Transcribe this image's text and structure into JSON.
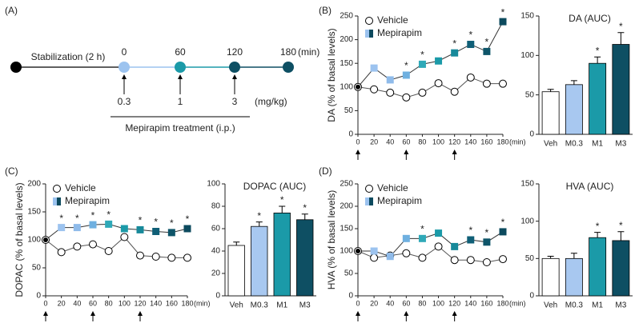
{
  "panel_labels": [
    "(A)",
    "(B)",
    "(C)",
    "(D)"
  ],
  "timeline": {
    "stabilization": "Stabilization (2 h)",
    "times": [
      "0",
      "60",
      "120",
      "180"
    ],
    "time_unit": "(min)",
    "doses": [
      "0.3",
      "1",
      "3"
    ],
    "dose_unit": "(mg/kg)",
    "treatment": "Mepirapim treatment (i.p.)"
  },
  "chart_data": [
    {
      "type": "line",
      "ylabel": "DA (% of basal levels)",
      "xlabel": "(min)",
      "x": [
        0,
        20,
        40,
        60,
        80,
        100,
        120,
        140,
        160,
        180
      ],
      "xlim": [
        0,
        180
      ],
      "xticks": [
        0,
        20,
        40,
        60,
        80,
        100,
        120,
        140,
        160,
        180
      ],
      "ylim": [
        0,
        250
      ],
      "yticks": [
        0,
        50,
        100,
        150,
        200,
        250
      ],
      "injections": [
        0,
        60,
        120
      ],
      "series": [
        {
          "name": "Vehicle",
          "color": "#555555",
          "values": [
            100,
            95,
            88,
            78,
            88,
            108,
            90,
            120,
            107,
            107
          ]
        },
        {
          "name": "Mepirapim",
          "color": "#333333",
          "colors": [
            "#000000",
            "#9cc3ef",
            "#8fbbea",
            "#6fb0e0",
            "#2fa9b8",
            "#1b9aa8",
            "#17899a",
            "#105f77",
            "#0e5569",
            "#0c4a5e"
          ],
          "values": [
            100,
            140,
            115,
            125,
            148,
            155,
            172,
            190,
            175,
            238
          ],
          "sig": [
            null,
            null,
            null,
            "*",
            "*",
            null,
            "*",
            "*",
            "*",
            "*"
          ]
        }
      ]
    },
    {
      "type": "bar",
      "title": "DA (AUC)",
      "categories": [
        "Veh",
        "M0.3",
        "M1",
        "M3"
      ],
      "values": [
        54,
        63,
        90,
        114
      ],
      "errors": [
        3,
        5,
        8,
        15
      ],
      "colors": [
        "#ffffff",
        "#a8c8f0",
        "#1b9aa8",
        "#0e4f63"
      ],
      "sig": [
        null,
        null,
        "*",
        "*"
      ],
      "ylim": [
        0,
        150
      ],
      "yticks": [
        0,
        50,
        100,
        150
      ]
    },
    {
      "type": "line",
      "ylabel": "DOPAC (% of basal levels)",
      "xlabel": "(min)",
      "x": [
        0,
        20,
        40,
        60,
        80,
        100,
        120,
        140,
        160,
        180
      ],
      "xlim": [
        0,
        180
      ],
      "xticks": [
        0,
        20,
        40,
        60,
        80,
        100,
        120,
        140,
        160,
        180
      ],
      "ylim": [
        0,
        200
      ],
      "yticks": [
        0,
        50,
        100,
        150,
        200
      ],
      "injections": [
        0,
        60,
        120
      ],
      "series": [
        {
          "name": "Vehicle",
          "color": "#555555",
          "values": [
            100,
            78,
            88,
            92,
            80,
            105,
            72,
            70,
            68,
            68
          ]
        },
        {
          "name": "Mepirapim",
          "color": "#333333",
          "colors": [
            "#000000",
            "#9cc3ef",
            "#8fbbea",
            "#6fb0e0",
            "#2fa9b8",
            "#1b9aa8",
            "#17899a",
            "#105f77",
            "#0e5569",
            "#0c4a5e"
          ],
          "values": [
            100,
            122,
            122,
            127,
            128,
            120,
            118,
            115,
            113,
            120
          ],
          "sig": [
            null,
            "*",
            "*",
            "*",
            "*",
            null,
            "*",
            "*",
            "*",
            "*"
          ]
        }
      ]
    },
    {
      "type": "bar",
      "title": "DOPAC (AUC)",
      "categories": [
        "Veh",
        "M0.3",
        "M1",
        "M3"
      ],
      "values": [
        45,
        62,
        74,
        68
      ],
      "errors": [
        3,
        4,
        6,
        5
      ],
      "colors": [
        "#ffffff",
        "#a8c8f0",
        "#1b9aa8",
        "#0e4f63"
      ],
      "sig": [
        null,
        "*",
        "*",
        "*"
      ],
      "ylim": [
        0,
        100
      ],
      "yticks": [
        0,
        20,
        40,
        60,
        80,
        100
      ]
    },
    {
      "type": "line",
      "ylabel": "HVA (% of basal levels)",
      "xlabel": "(min)",
      "x": [
        0,
        20,
        40,
        60,
        80,
        100,
        120,
        140,
        160,
        180
      ],
      "xlim": [
        0,
        180
      ],
      "xticks": [
        0,
        20,
        40,
        60,
        80,
        100,
        120,
        140,
        160,
        180
      ],
      "ylim": [
        0,
        250
      ],
      "yticks": [
        0,
        50,
        100,
        150,
        200,
        250
      ],
      "injections": [
        0,
        60,
        120
      ],
      "series": [
        {
          "name": "Vehicle",
          "color": "#555555",
          "values": [
            100,
            85,
            90,
            95,
            85,
            110,
            80,
            80,
            75,
            82
          ]
        },
        {
          "name": "Mepirapim",
          "color": "#333333",
          "colors": [
            "#000000",
            "#9cc3ef",
            "#8fbbea",
            "#6fb0e0",
            "#2fa9b8",
            "#1b9aa8",
            "#17899a",
            "#105f77",
            "#0e5569",
            "#0c4a5e"
          ],
          "values": [
            100,
            100,
            88,
            128,
            128,
            140,
            110,
            125,
            120,
            143
          ],
          "sig": [
            null,
            null,
            null,
            null,
            "*",
            null,
            null,
            "*",
            "*",
            "*"
          ]
        }
      ]
    },
    {
      "type": "bar",
      "title": "HVA (AUC)",
      "categories": [
        "Veh",
        "M0.3",
        "M1",
        "M3"
      ],
      "values": [
        50,
        50,
        78,
        74
      ],
      "errors": [
        3,
        7,
        7,
        12
      ],
      "colors": [
        "#ffffff",
        "#a8c8f0",
        "#1b9aa8",
        "#0e4f63"
      ],
      "sig": [
        null,
        null,
        "*",
        "*"
      ],
      "ylim": [
        0,
        150
      ],
      "yticks": [
        0,
        50,
        100,
        150
      ]
    }
  ]
}
